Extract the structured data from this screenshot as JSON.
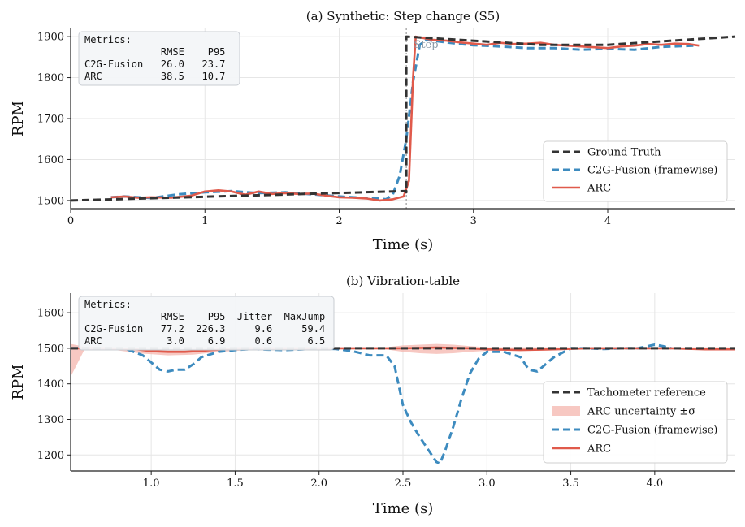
{
  "colors": {
    "ground_truth": "#333333",
    "c2g": "#3d8bbf",
    "arc": "#e05a4b",
    "arc_band": "#f4b6ae",
    "grid": "#e6e6e6"
  },
  "chart_data": [
    {
      "type": "line",
      "title": "(a) Synthetic: Step change (S5)",
      "xlabel": "Time (s)",
      "ylabel": "RPM",
      "xlim": [
        0,
        4.95
      ],
      "ylim": [
        1480,
        1920
      ],
      "xticks": [
        0,
        1,
        2,
        3,
        4
      ],
      "yticks": [
        1500,
        1600,
        1700,
        1800,
        1900
      ],
      "annotation": {
        "text": "Step",
        "x": 2.52,
        "y": 1882
      },
      "vline_x": 2.5,
      "metrics": {
        "header": "Metrics:",
        "columns": [
          "",
          "RMSE",
          "P95"
        ],
        "rows": [
          [
            "C2G-Fusion",
            "26.0",
            "23.7"
          ],
          [
            "ARC",
            "38.5",
            "10.7"
          ]
        ],
        "lines": [
          "Metrics:",
          "             RMSE    P95",
          "C2G-Fusion   26.0   23.7",
          "ARC          38.5   10.7"
        ]
      },
      "legend": {
        "position": "lower-right",
        "entries": [
          "Ground Truth",
          "C2G-Fusion (framewise)",
          "ARC"
        ]
      },
      "series": [
        {
          "name": "Ground Truth",
          "style": "dashed",
          "color": "#333333",
          "x": [
            0,
            2.5,
            2.5,
            2.5,
            3.5,
            4.0,
            4.95
          ],
          "y": [
            1500,
            1523,
            1520,
            1900,
            1880,
            1880,
            1900
          ]
        },
        {
          "name": "C2G-Fusion (framewise)",
          "style": "dashed",
          "color": "#3d8bbf",
          "x": [
            0.3,
            0.4,
            0.5,
            0.6,
            0.8,
            1.0,
            1.2,
            1.4,
            1.6,
            1.8,
            2.0,
            2.2,
            2.3,
            2.35,
            2.4,
            2.45,
            2.5,
            2.55,
            2.6,
            2.65,
            2.7,
            2.8,
            2.9,
            3.0,
            3.2,
            3.4,
            3.6,
            3.8,
            4.0,
            4.2,
            4.4,
            4.65
          ],
          "y": [
            1508,
            1510,
            1508,
            1506,
            1515,
            1520,
            1523,
            1518,
            1520,
            1515,
            1510,
            1506,
            1505,
            1503,
            1515,
            1560,
            1650,
            1790,
            1880,
            1892,
            1890,
            1886,
            1882,
            1879,
            1876,
            1872,
            1872,
            1868,
            1870,
            1868,
            1875,
            1878
          ]
        },
        {
          "name": "ARC",
          "style": "solid",
          "color": "#e05a4b",
          "x": [
            0.3,
            0.4,
            0.5,
            0.6,
            0.75,
            0.9,
            1.0,
            1.1,
            1.2,
            1.3,
            1.4,
            1.5,
            1.6,
            1.7,
            1.8,
            1.9,
            2.0,
            2.1,
            2.2,
            2.3,
            2.4,
            2.48,
            2.52,
            2.55,
            2.57,
            2.6,
            2.7,
            2.8,
            2.9,
            3.0,
            3.1,
            3.2,
            3.3,
            3.4,
            3.5,
            3.6,
            3.7,
            3.8,
            3.9,
            4.0,
            4.1,
            4.2,
            4.3,
            4.4,
            4.5,
            4.6,
            4.68
          ],
          "y": [
            1508,
            1510,
            1507,
            1508,
            1507,
            1512,
            1522,
            1525,
            1522,
            1514,
            1522,
            1516,
            1518,
            1516,
            1517,
            1512,
            1508,
            1507,
            1505,
            1500,
            1503,
            1510,
            1548,
            1800,
            1900,
            1898,
            1892,
            1890,
            1886,
            1883,
            1880,
            1885,
            1882,
            1883,
            1885,
            1880,
            1878,
            1876,
            1874,
            1872,
            1876,
            1878,
            1882,
            1880,
            1883,
            1882,
            1878
          ]
        }
      ]
    },
    {
      "type": "line",
      "title": "(b) Vibration-table",
      "xlabel": "Time (s)",
      "ylabel": "RPM",
      "xlim": [
        0.52,
        4.48
      ],
      "ylim": [
        1155,
        1655
      ],
      "xticks": [
        1.0,
        1.5,
        2.0,
        2.5,
        3.0,
        3.5,
        4.0
      ],
      "xtick_labels": [
        "1.0",
        "1.5",
        "2.0",
        "2.5",
        "3.0",
        "3.5",
        "4.0"
      ],
      "yticks": [
        1200,
        1300,
        1400,
        1500,
        1600
      ],
      "metrics": {
        "header": "Metrics:",
        "columns": [
          "",
          "RMSE",
          "P95",
          "Jitter",
          "MaxJump"
        ],
        "rows": [
          [
            "C2G-Fusion",
            "77.2",
            "226.3",
            "9.6",
            "59.4"
          ],
          [
            "ARC",
            "3.0",
            "6.9",
            "0.6",
            "6.5"
          ]
        ],
        "lines": [
          "Metrics:",
          "             RMSE    P95  Jitter  MaxJump",
          "C2G-Fusion   77.2  226.3     9.6     59.4",
          "ARC           3.0    6.9     0.6      6.5"
        ]
      },
      "legend": {
        "position": "lower-right",
        "entries": [
          "Tachometer reference",
          "ARC uncertainty ±σ",
          "C2G-Fusion (framewise)",
          "ARC"
        ]
      },
      "series": [
        {
          "name": "Tachometer reference",
          "style": "dashed",
          "color": "#333333",
          "x": [
            0.52,
            4.48
          ],
          "y": [
            1500,
            1500
          ]
        },
        {
          "name": "C2G-Fusion (framewise)",
          "style": "dashed",
          "color": "#3d8bbf",
          "x": [
            0.52,
            0.7,
            0.85,
            0.95,
            1.0,
            1.05,
            1.1,
            1.15,
            1.2,
            1.25,
            1.3,
            1.4,
            1.5,
            1.6,
            1.7,
            1.8,
            1.9,
            2.0,
            2.1,
            2.2,
            2.3,
            2.4,
            2.45,
            2.5,
            2.55,
            2.6,
            2.65,
            2.7,
            2.72,
            2.75,
            2.8,
            2.85,
            2.9,
            2.95,
            3.0,
            3.1,
            3.2,
            3.25,
            3.3,
            3.4,
            3.5,
            3.6,
            3.7,
            3.8,
            3.9,
            4.0,
            4.05,
            4.1
          ],
          "y": [
            1500,
            1500,
            1498,
            1480,
            1460,
            1440,
            1435,
            1440,
            1440,
            1455,
            1475,
            1490,
            1495,
            1498,
            1496,
            1495,
            1497,
            1500,
            1498,
            1492,
            1480,
            1480,
            1450,
            1340,
            1290,
            1250,
            1215,
            1180,
            1176,
            1210,
            1280,
            1360,
            1430,
            1470,
            1490,
            1490,
            1475,
            1440,
            1435,
            1475,
            1500,
            1500,
            1498,
            1500,
            1500,
            1510,
            1506,
            1500
          ]
        },
        {
          "name": "ARC",
          "style": "solid",
          "color": "#e05a4b",
          "x": [
            0.52,
            0.7,
            0.9,
            1.0,
            1.1,
            1.2,
            1.3,
            1.4,
            1.5,
            2.0,
            2.5,
            2.7,
            2.9,
            3.0,
            3.2,
            3.4,
            3.6,
            3.9,
            4.1,
            4.3,
            4.48
          ],
          "y": [
            1500,
            1500,
            1498,
            1492,
            1490,
            1490,
            1493,
            1496,
            1500,
            1500,
            1500,
            1502,
            1500,
            1497,
            1495,
            1497,
            1500,
            1500,
            1500,
            1497,
            1497
          ]
        },
        {
          "name": "ARC uncertainty ±σ",
          "style": "band",
          "color": "#f4b6ae",
          "x": [
            0.52,
            0.6,
            0.8,
            0.95,
            1.1,
            1.25,
            1.4,
            1.6,
            2.0,
            2.4,
            2.5,
            2.6,
            2.7,
            2.8,
            2.9,
            3.0,
            3.1,
            3.3,
            3.6,
            4.0,
            4.48
          ],
          "upper": [
            1512,
            1505,
            1503,
            1500,
            1500,
            1500,
            1502,
            1503,
            1502,
            1503,
            1508,
            1510,
            1512,
            1510,
            1506,
            1503,
            1503,
            1503,
            1503,
            1503,
            1503
          ],
          "lower": [
            1420,
            1494,
            1494,
            1485,
            1480,
            1482,
            1490,
            1495,
            1497,
            1497,
            1490,
            1486,
            1484,
            1486,
            1490,
            1493,
            1494,
            1493,
            1497,
            1497,
            1495
          ]
        }
      ]
    }
  ]
}
